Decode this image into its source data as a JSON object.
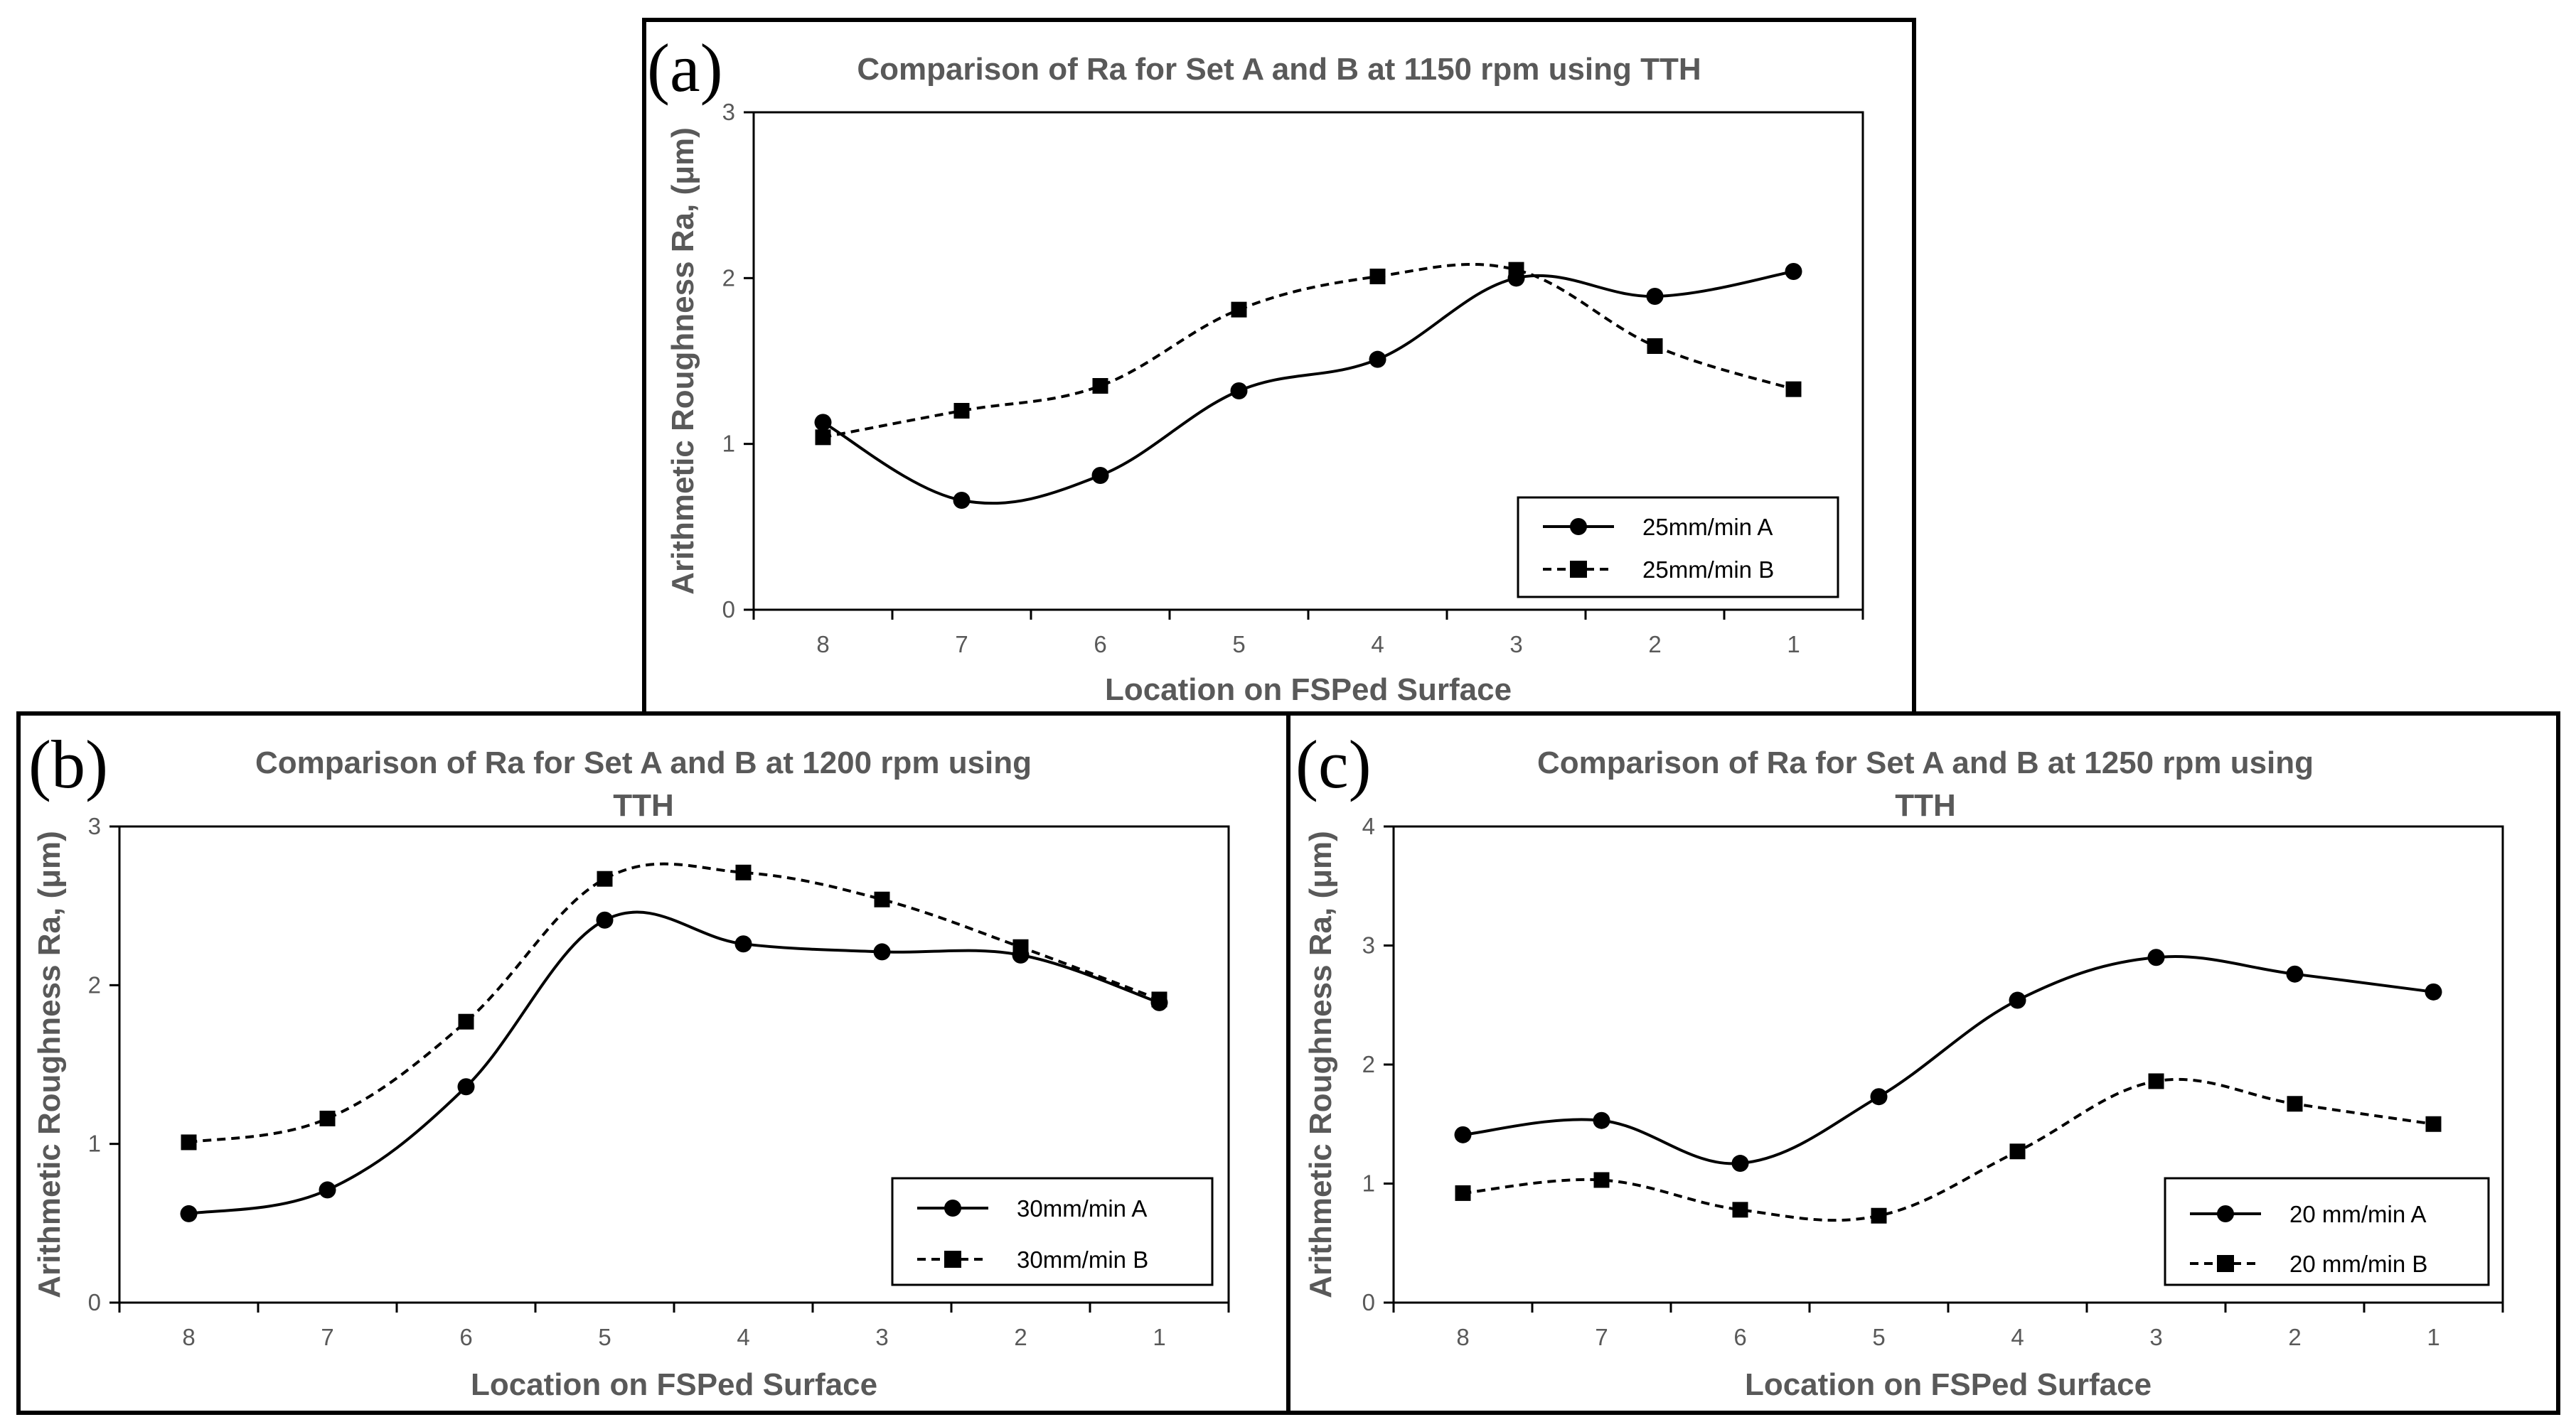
{
  "chart_data": [
    {
      "type": "line",
      "panel_label": "(a)",
      "title_lines": [
        "Comparison of Ra for Set A and B at 1150 rpm using TTH"
      ],
      "xlabel": "Location on FSPed Surface",
      "ylabel": "Arithmetic Roughness Ra, (μm)",
      "categories": [
        "8",
        "7",
        "6",
        "5",
        "4",
        "3",
        "2",
        "1"
      ],
      "ylim": [
        0,
        3
      ],
      "yticks": [
        "0",
        "1",
        "2",
        "3"
      ],
      "grid": false,
      "legend_position": "bottom-right",
      "series": [
        {
          "name": "25mm/min A",
          "marker": "circle",
          "style": "solid",
          "values": [
            1.13,
            0.66,
            0.81,
            1.32,
            1.51,
            2.0,
            1.89,
            2.04
          ]
        },
        {
          "name": "25mm/min B",
          "marker": "square",
          "style": "dashed",
          "values": [
            1.04,
            1.2,
            1.35,
            1.81,
            2.01,
            2.05,
            1.59,
            1.33
          ]
        }
      ]
    },
    {
      "type": "line",
      "panel_label": "(b)",
      "title_lines": [
        "Comparison of Ra for Set A and B at 1200 rpm using",
        "TTH"
      ],
      "xlabel": "Location on FSPed Surface",
      "ylabel": "Arithmetic Roughness Ra, (μm)",
      "categories": [
        "8",
        "7",
        "6",
        "5",
        "4",
        "3",
        "2",
        "1"
      ],
      "ylim": [
        0,
        3
      ],
      "yticks": [
        "0",
        "1",
        "2",
        "3"
      ],
      "grid": false,
      "legend_position": "bottom-right",
      "series": [
        {
          "name": "30mm/min A",
          "marker": "circle",
          "style": "solid",
          "values": [
            0.56,
            0.71,
            1.36,
            2.41,
            2.26,
            2.21,
            2.19,
            1.89
          ]
        },
        {
          "name": "30mm/min B",
          "marker": "square",
          "style": "dashed",
          "values": [
            1.01,
            1.16,
            1.77,
            2.67,
            2.71,
            2.54,
            2.24,
            1.91
          ]
        }
      ]
    },
    {
      "type": "line",
      "panel_label": "(c)",
      "title_lines": [
        "Comparison of Ra for Set A and B at 1250 rpm using",
        "TTH"
      ],
      "xlabel": "Location on FSPed Surface",
      "ylabel": "Arithmetic Roughness Ra, (μm)",
      "categories": [
        "8",
        "7",
        "6",
        "5",
        "4",
        "3",
        "2",
        "1"
      ],
      "ylim": [
        0,
        4
      ],
      "yticks": [
        "0",
        "1",
        "2",
        "3",
        "4"
      ],
      "grid": false,
      "legend_position": "bottom-right",
      "series": [
        {
          "name": "20 mm/min A",
          "marker": "circle",
          "style": "solid",
          "values": [
            1.41,
            1.53,
            1.17,
            1.73,
            2.54,
            2.9,
            2.76,
            2.61
          ]
        },
        {
          "name": "20 mm/min B",
          "marker": "square",
          "style": "dashed",
          "values": [
            0.92,
            1.03,
            0.78,
            0.73,
            1.27,
            1.86,
            1.67,
            1.5
          ]
        }
      ]
    }
  ]
}
